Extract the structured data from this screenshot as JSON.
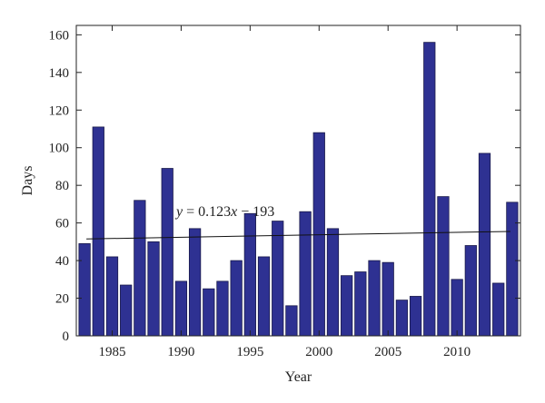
{
  "chart_data": {
    "type": "bar",
    "xlabel": "Year",
    "ylabel": "Days",
    "xlim": [
      1982.4,
      2014.6
    ],
    "ylim": [
      0,
      165
    ],
    "x_ticks": [
      1985,
      1990,
      1995,
      2000,
      2005,
      2010
    ],
    "y_ticks": [
      0,
      20,
      40,
      60,
      80,
      100,
      120,
      140,
      160
    ],
    "grid": false,
    "bar_color": "#2e3192",
    "bar_edge_color": "#1a1a4a",
    "series": [
      {
        "x": [
          1983,
          1984,
          1985,
          1986,
          1987,
          1988,
          1989,
          1990,
          1991,
          1992,
          1993,
          1994,
          1995,
          1996,
          1997,
          1998,
          1999,
          2000,
          2001,
          2002,
          2003,
          2004,
          2005,
          2006,
          2007,
          2008,
          2009,
          2010,
          2011,
          2012,
          2013,
          2014
        ],
        "values": [
          49,
          111,
          42,
          27,
          72,
          50,
          89,
          29,
          57,
          25,
          29,
          40,
          65,
          42,
          61,
          16,
          66,
          108,
          57,
          32,
          34,
          40,
          39,
          19,
          21,
          156,
          74,
          30,
          48,
          97,
          28,
          71
        ]
      }
    ],
    "trendline": {
      "slope": 0.123,
      "intercept": -193,
      "label_parts": {
        "y": "y",
        "eq": " = 0.123",
        "x": "x",
        "rest": " − 193"
      }
    }
  }
}
